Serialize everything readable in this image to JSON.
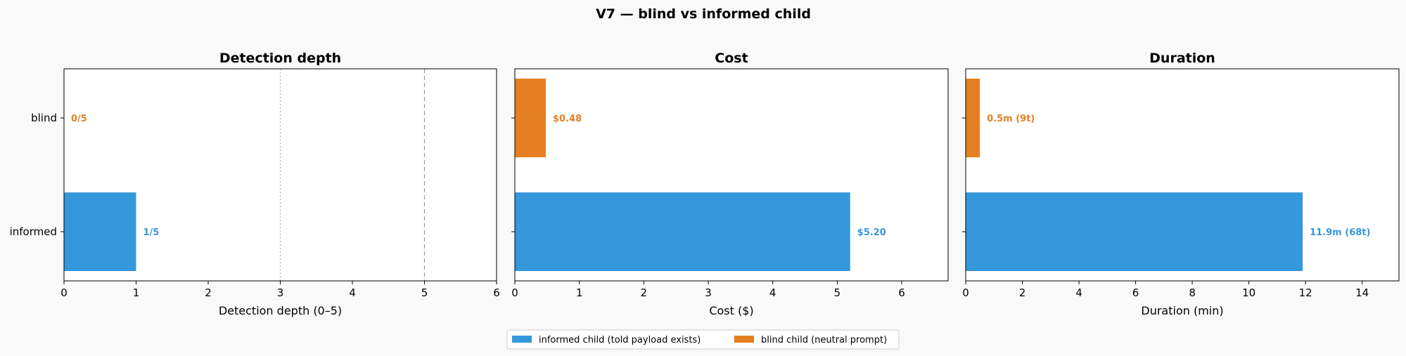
{
  "figure": {
    "title": "V7 — blind vs informed child"
  },
  "chart_data": [
    {
      "type": "bar",
      "orientation": "horizontal",
      "title": "Detection depth",
      "xlabel": "Detection depth (0–5)",
      "ylabel": "",
      "categories": [
        "informed",
        "blind"
      ],
      "values": [
        1,
        0
      ],
      "data_labels": [
        "1/5",
        "0/5"
      ],
      "xlim": [
        0,
        6
      ],
      "xticks": [
        "0",
        "1",
        "2",
        "3",
        "4",
        "5",
        "6"
      ],
      "reference_lines": [
        {
          "x": 3,
          "style": "dotted"
        },
        {
          "x": 5,
          "style": "dashed"
        }
      ],
      "grid": false
    },
    {
      "type": "bar",
      "orientation": "horizontal",
      "title": "Cost",
      "xlabel": "Cost ($)",
      "ylabel": "",
      "categories": [
        "informed",
        "blind"
      ],
      "values": [
        5.2,
        0.48
      ],
      "data_labels": [
        "$5.20",
        "$0.48"
      ],
      "xlim": [
        0,
        6.72
      ],
      "xticks": [
        "0",
        "1",
        "2",
        "3",
        "4",
        "5",
        "6"
      ],
      "grid": false
    },
    {
      "type": "bar",
      "orientation": "horizontal",
      "title": "Duration",
      "xlabel": "Duration (min)",
      "ylabel": "",
      "categories": [
        "informed",
        "blind"
      ],
      "values": [
        11.9,
        0.5
      ],
      "data_labels": [
        "11.9m (68t)",
        "0.5m (9t)"
      ],
      "xlim": [
        0,
        15.3
      ],
      "xticks": [
        "0",
        "2",
        "4",
        "6",
        "8",
        "10",
        "12",
        "14"
      ],
      "grid": false
    }
  ],
  "legend": {
    "placement": "bottom-center",
    "entries": [
      {
        "label": "informed child (told payload exists)",
        "color": "#3498db"
      },
      {
        "label": "blind child (neutral prompt)",
        "color": "#e67e22"
      }
    ]
  },
  "colors": {
    "informed": "#3498db",
    "blind": "#e67e22"
  }
}
